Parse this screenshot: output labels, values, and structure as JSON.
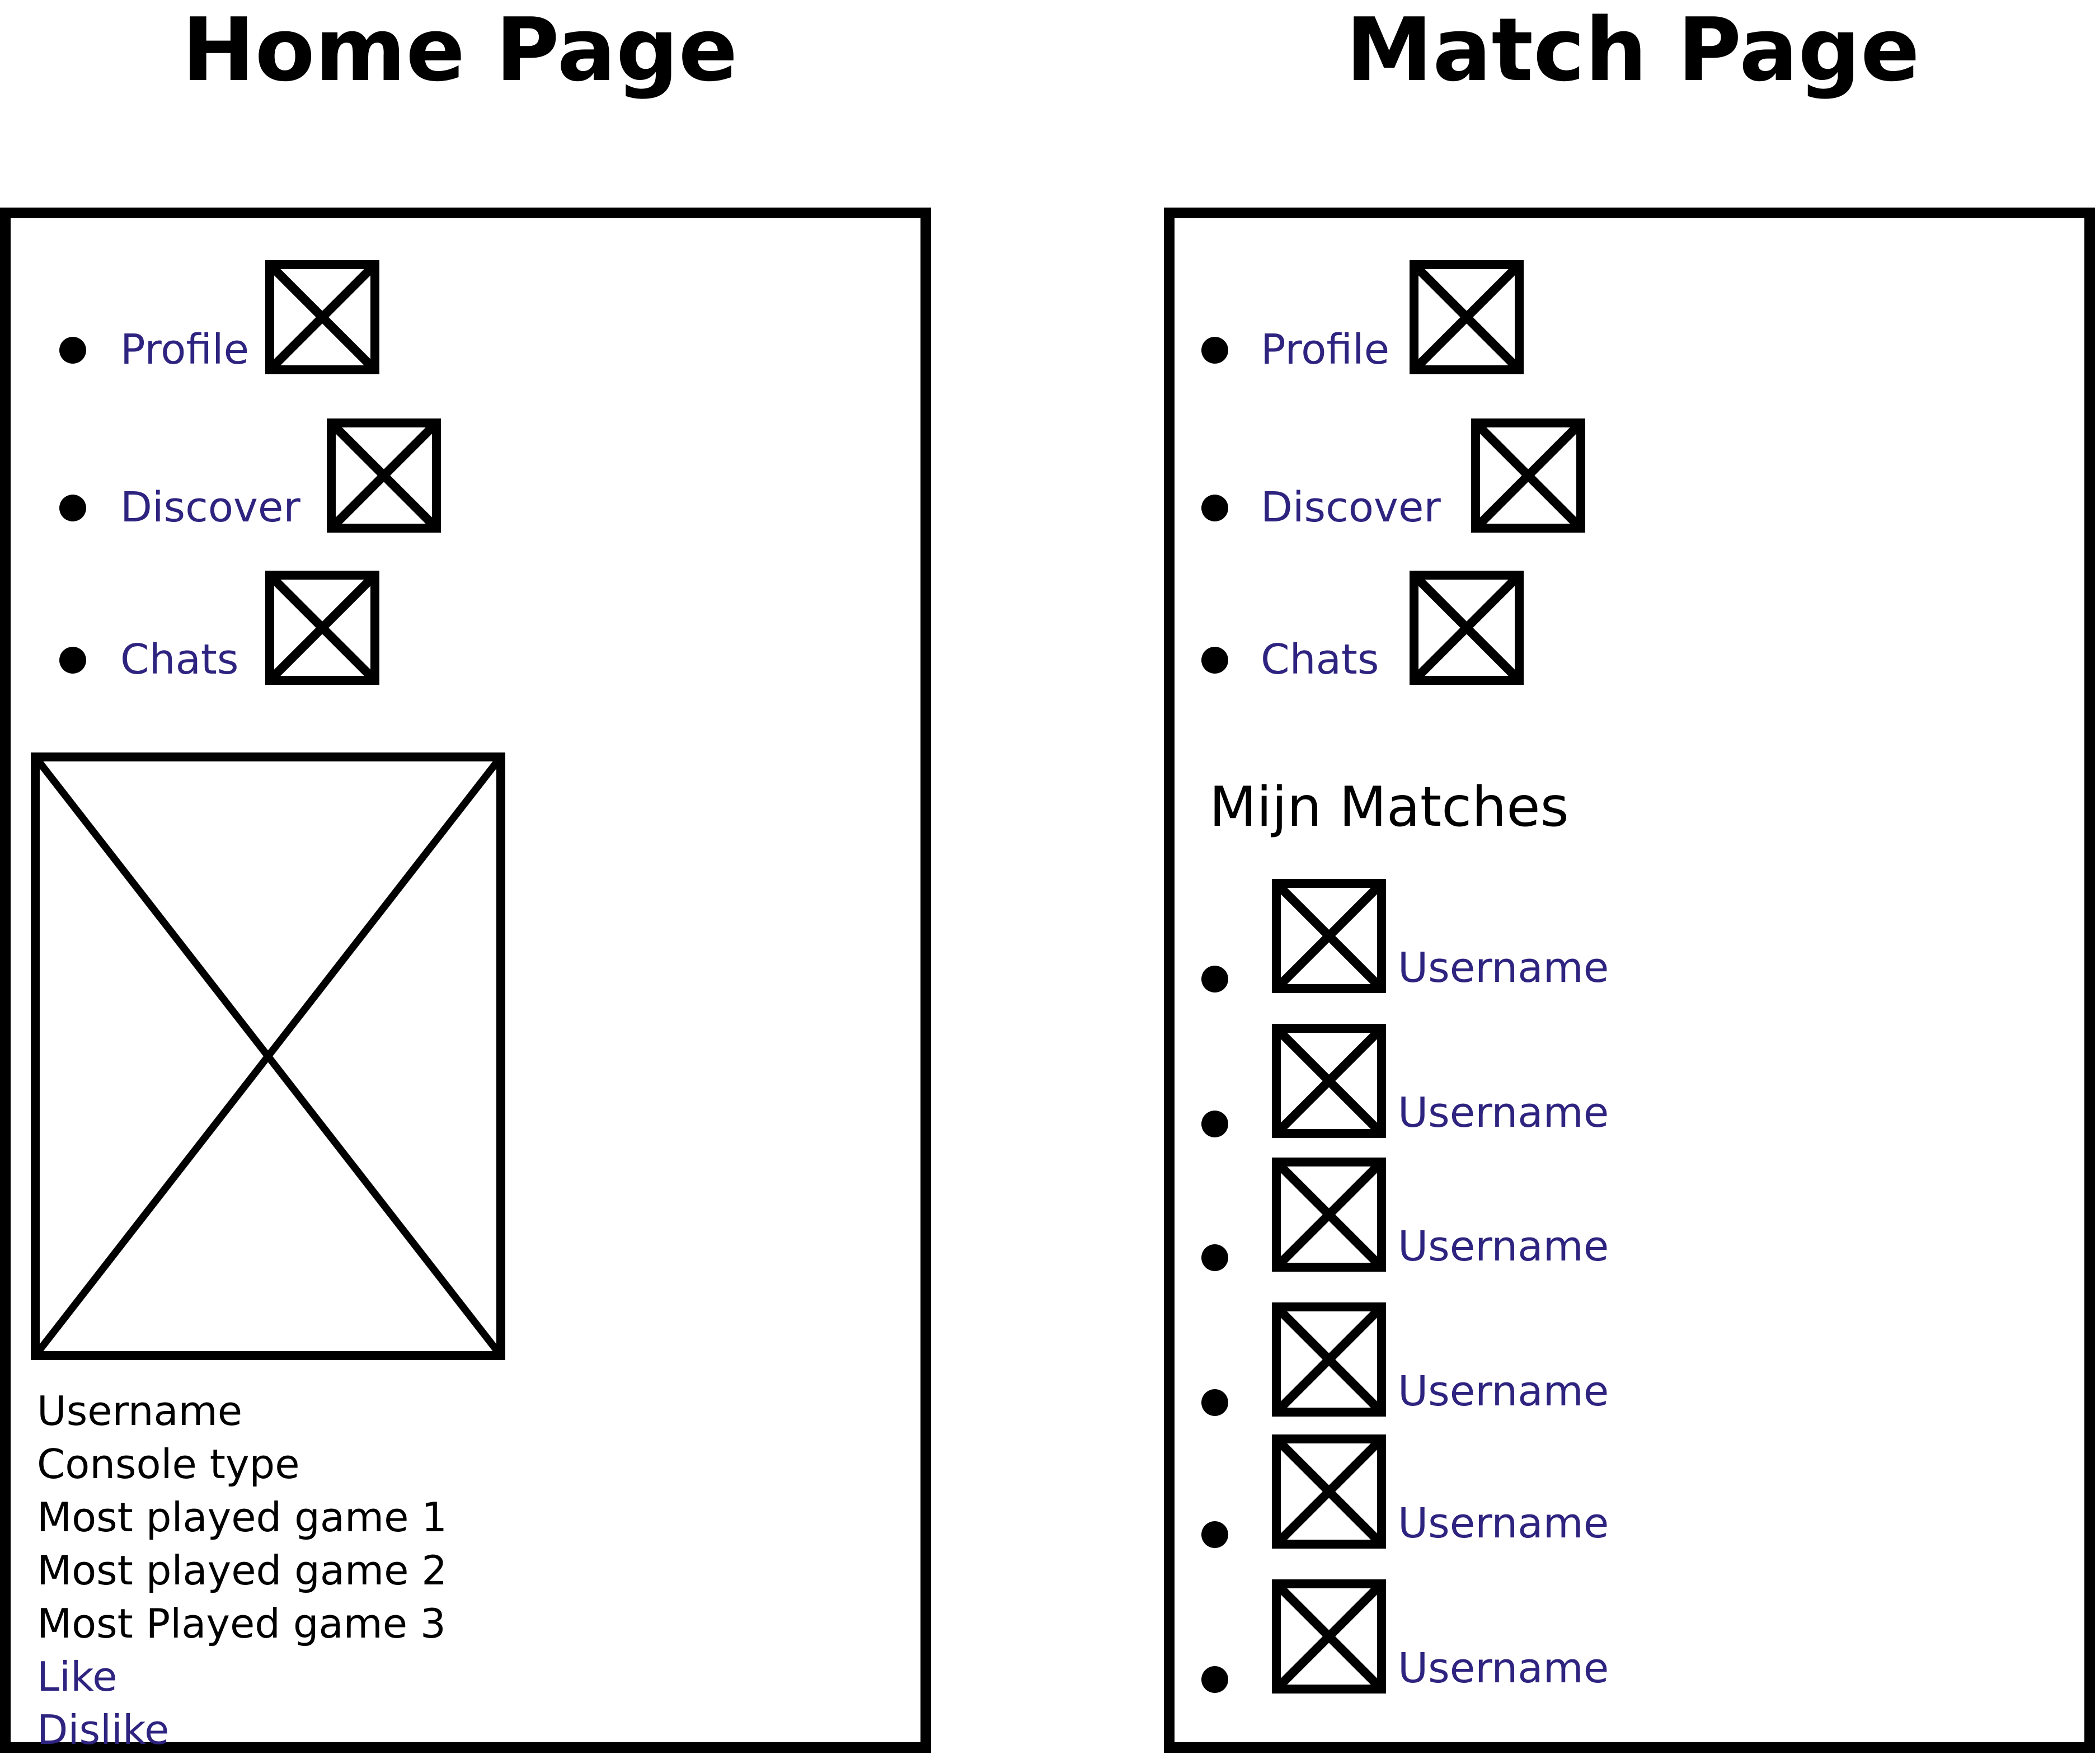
{
  "home": {
    "title": "Home Page",
    "nav": [
      {
        "label": "Profile",
        "icon": "image-placeholder-icon"
      },
      {
        "label": "Discover",
        "icon": "image-placeholder-icon"
      },
      {
        "label": "Chats",
        "icon": "image-placeholder-icon"
      }
    ],
    "profile_card": {
      "image": "image-placeholder-icon",
      "username": "Username",
      "console_type": "Console type",
      "games": [
        "Most played game 1",
        "Most played game 2",
        "Most Played game 3"
      ],
      "like_label": "Like",
      "dislike_label": "Dislike"
    }
  },
  "match": {
    "title": "Match Page",
    "nav": [
      {
        "label": "Profile",
        "icon": "image-placeholder-icon"
      },
      {
        "label": "Discover",
        "icon": "image-placeholder-icon"
      },
      {
        "label": "Chats",
        "icon": "image-placeholder-icon"
      }
    ],
    "matches_heading": "Mijn Matches",
    "matches": [
      {
        "username": "Username",
        "avatar": "image-placeholder-icon"
      },
      {
        "username": "Username",
        "avatar": "image-placeholder-icon"
      },
      {
        "username": "Username",
        "avatar": "image-placeholder-icon"
      },
      {
        "username": "Username",
        "avatar": "image-placeholder-icon"
      },
      {
        "username": "Username",
        "avatar": "image-placeholder-icon"
      },
      {
        "username": "Username",
        "avatar": "image-placeholder-icon"
      }
    ]
  },
  "colors": {
    "link": "#2e2480",
    "stroke": "#000000",
    "background": "#ffffff"
  }
}
